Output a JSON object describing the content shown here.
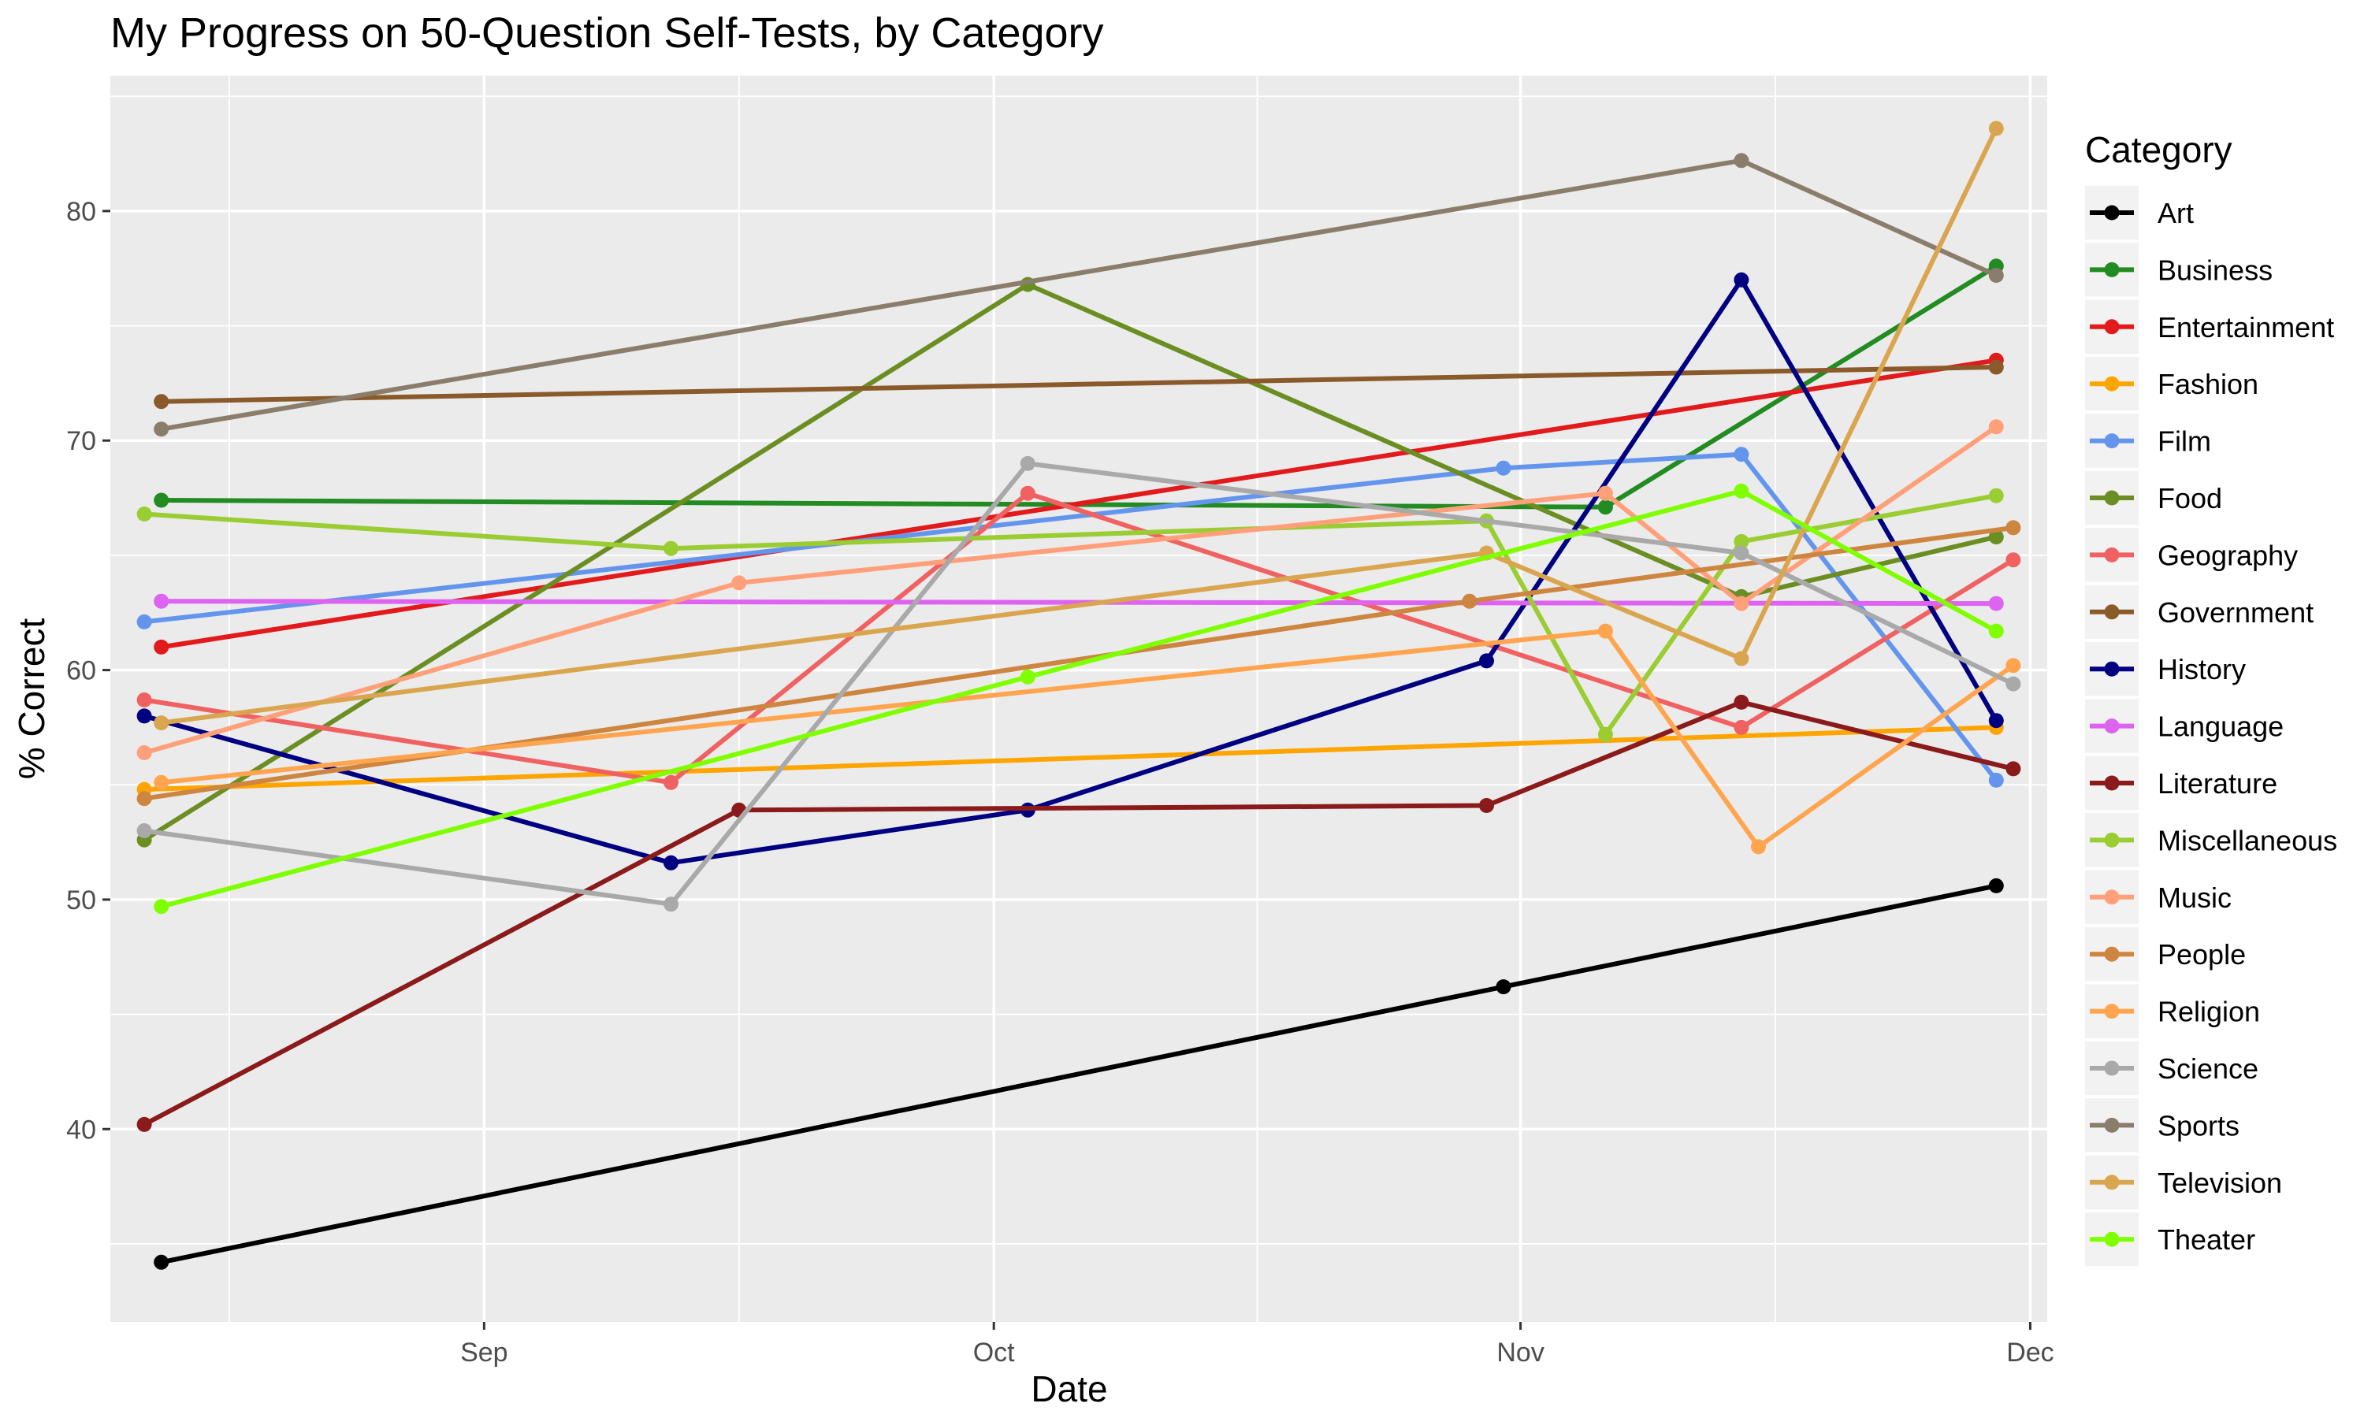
{
  "chart_data": {
    "type": "line",
    "title": "My Progress on 50-Question Self-Tests, by Category",
    "xlabel": "Date",
    "ylabel": "% Correct",
    "x_ticks": [
      "Sep",
      "Oct",
      "Nov",
      "Dec"
    ],
    "x_tick_values": [
      "2018-09-01",
      "2018-10-01",
      "2018-11-01",
      "2018-12-01"
    ],
    "xlim": [
      "2018-08-10",
      "2018-12-02"
    ],
    "y_ticks": [
      40,
      50,
      60,
      70,
      80
    ],
    "ylim": [
      31.6,
      85.9
    ],
    "grid": true,
    "legend_title": "Category",
    "legend_position": "right",
    "series": [
      {
        "name": "Art",
        "color": "#000000",
        "points": [
          [
            "2018-08-13",
            34.2
          ],
          [
            "2018-10-31",
            46.2
          ],
          [
            "2018-11-29",
            50.6
          ]
        ]
      },
      {
        "name": "Business",
        "color": "#228b22",
        "points": [
          [
            "2018-08-13",
            67.4
          ],
          [
            "2018-11-06",
            67.1
          ],
          [
            "2018-11-29",
            77.6
          ]
        ]
      },
      {
        "name": "Entertainment",
        "color": "#e31a1c",
        "points": [
          [
            "2018-08-13",
            61.0
          ],
          [
            "2018-11-29",
            73.5
          ]
        ]
      },
      {
        "name": "Fashion",
        "color": "#ffa500",
        "points": [
          [
            "2018-08-12",
            54.8
          ],
          [
            "2018-11-29",
            57.5
          ]
        ]
      },
      {
        "name": "Film",
        "color": "#6495ed",
        "points": [
          [
            "2018-08-12",
            62.1
          ],
          [
            "2018-10-31",
            68.8
          ],
          [
            "2018-11-14",
            69.4
          ],
          [
            "2018-11-29",
            55.2
          ]
        ]
      },
      {
        "name": "Food",
        "color": "#6b8e23",
        "points": [
          [
            "2018-08-12",
            52.6
          ],
          [
            "2018-10-03",
            76.8
          ],
          [
            "2018-11-14",
            63.2
          ],
          [
            "2018-11-29",
            65.8
          ]
        ]
      },
      {
        "name": "Geography",
        "color": "#f06262",
        "points": [
          [
            "2018-08-12",
            58.7
          ],
          [
            "2018-09-12",
            55.1
          ],
          [
            "2018-10-03",
            67.7
          ],
          [
            "2018-11-14",
            57.5
          ],
          [
            "2018-11-30",
            64.8
          ]
        ]
      },
      {
        "name": "Government",
        "color": "#8b5a2b",
        "points": [
          [
            "2018-08-13",
            71.7
          ],
          [
            "2018-11-29",
            73.2
          ]
        ]
      },
      {
        "name": "History",
        "color": "#000080",
        "points": [
          [
            "2018-08-12",
            58.0
          ],
          [
            "2018-09-12",
            51.6
          ],
          [
            "2018-10-03",
            53.9
          ],
          [
            "2018-10-30",
            60.4
          ],
          [
            "2018-11-14",
            77.0
          ],
          [
            "2018-11-29",
            57.8
          ]
        ]
      },
      {
        "name": "Language",
        "color": "#dd63f0",
        "points": [
          [
            "2018-08-13",
            63.0
          ],
          [
            "2018-11-29",
            62.9
          ]
        ]
      },
      {
        "name": "Literature",
        "color": "#8b1a1a",
        "points": [
          [
            "2018-08-12",
            40.2
          ],
          [
            "2018-09-16",
            53.9
          ],
          [
            "2018-10-30",
            54.1
          ],
          [
            "2018-11-14",
            58.6
          ],
          [
            "2018-11-30",
            55.7
          ]
        ]
      },
      {
        "name": "Miscellaneous",
        "color": "#9acd32",
        "points": [
          [
            "2018-08-12",
            66.8
          ],
          [
            "2018-09-12",
            65.3
          ],
          [
            "2018-10-30",
            66.5
          ],
          [
            "2018-11-06",
            57.2
          ],
          [
            "2018-11-14",
            65.6
          ],
          [
            "2018-11-29",
            67.6
          ]
        ]
      },
      {
        "name": "Music",
        "color": "#ffa07a",
        "points": [
          [
            "2018-08-12",
            56.4
          ],
          [
            "2018-09-16",
            63.8
          ],
          [
            "2018-11-06",
            67.7
          ],
          [
            "2018-11-14",
            62.9
          ],
          [
            "2018-11-29",
            70.6
          ]
        ]
      },
      {
        "name": "People",
        "color": "#cd853f",
        "points": [
          [
            "2018-08-12",
            54.4
          ],
          [
            "2018-10-29",
            63.0
          ],
          [
            "2018-11-30",
            66.2
          ]
        ]
      },
      {
        "name": "Religion",
        "color": "#ffa54f",
        "points": [
          [
            "2018-08-13",
            55.1
          ],
          [
            "2018-11-06",
            61.7
          ],
          [
            "2018-11-15",
            52.3
          ],
          [
            "2018-11-30",
            60.2
          ]
        ]
      },
      {
        "name": "Science",
        "color": "#a9a9a9",
        "points": [
          [
            "2018-08-12",
            53.0
          ],
          [
            "2018-09-12",
            49.8
          ],
          [
            "2018-10-03",
            69.0
          ],
          [
            "2018-11-14",
            65.1
          ],
          [
            "2018-11-30",
            59.4
          ]
        ]
      },
      {
        "name": "Sports",
        "color": "#8b7d6b",
        "points": [
          [
            "2018-08-13",
            70.5
          ],
          [
            "2018-11-14",
            82.2
          ],
          [
            "2018-11-29",
            77.2
          ]
        ]
      },
      {
        "name": "Television",
        "color": "#daa54f",
        "points": [
          [
            "2018-08-13",
            57.7
          ],
          [
            "2018-10-30",
            65.1
          ],
          [
            "2018-11-14",
            60.5
          ],
          [
            "2018-11-29",
            83.6
          ]
        ]
      },
      {
        "name": "Theater",
        "color": "#7fff00",
        "points": [
          [
            "2018-08-13",
            49.7
          ],
          [
            "2018-10-03",
            59.7
          ],
          [
            "2018-11-14",
            67.8
          ],
          [
            "2018-11-29",
            61.7
          ]
        ]
      }
    ]
  }
}
